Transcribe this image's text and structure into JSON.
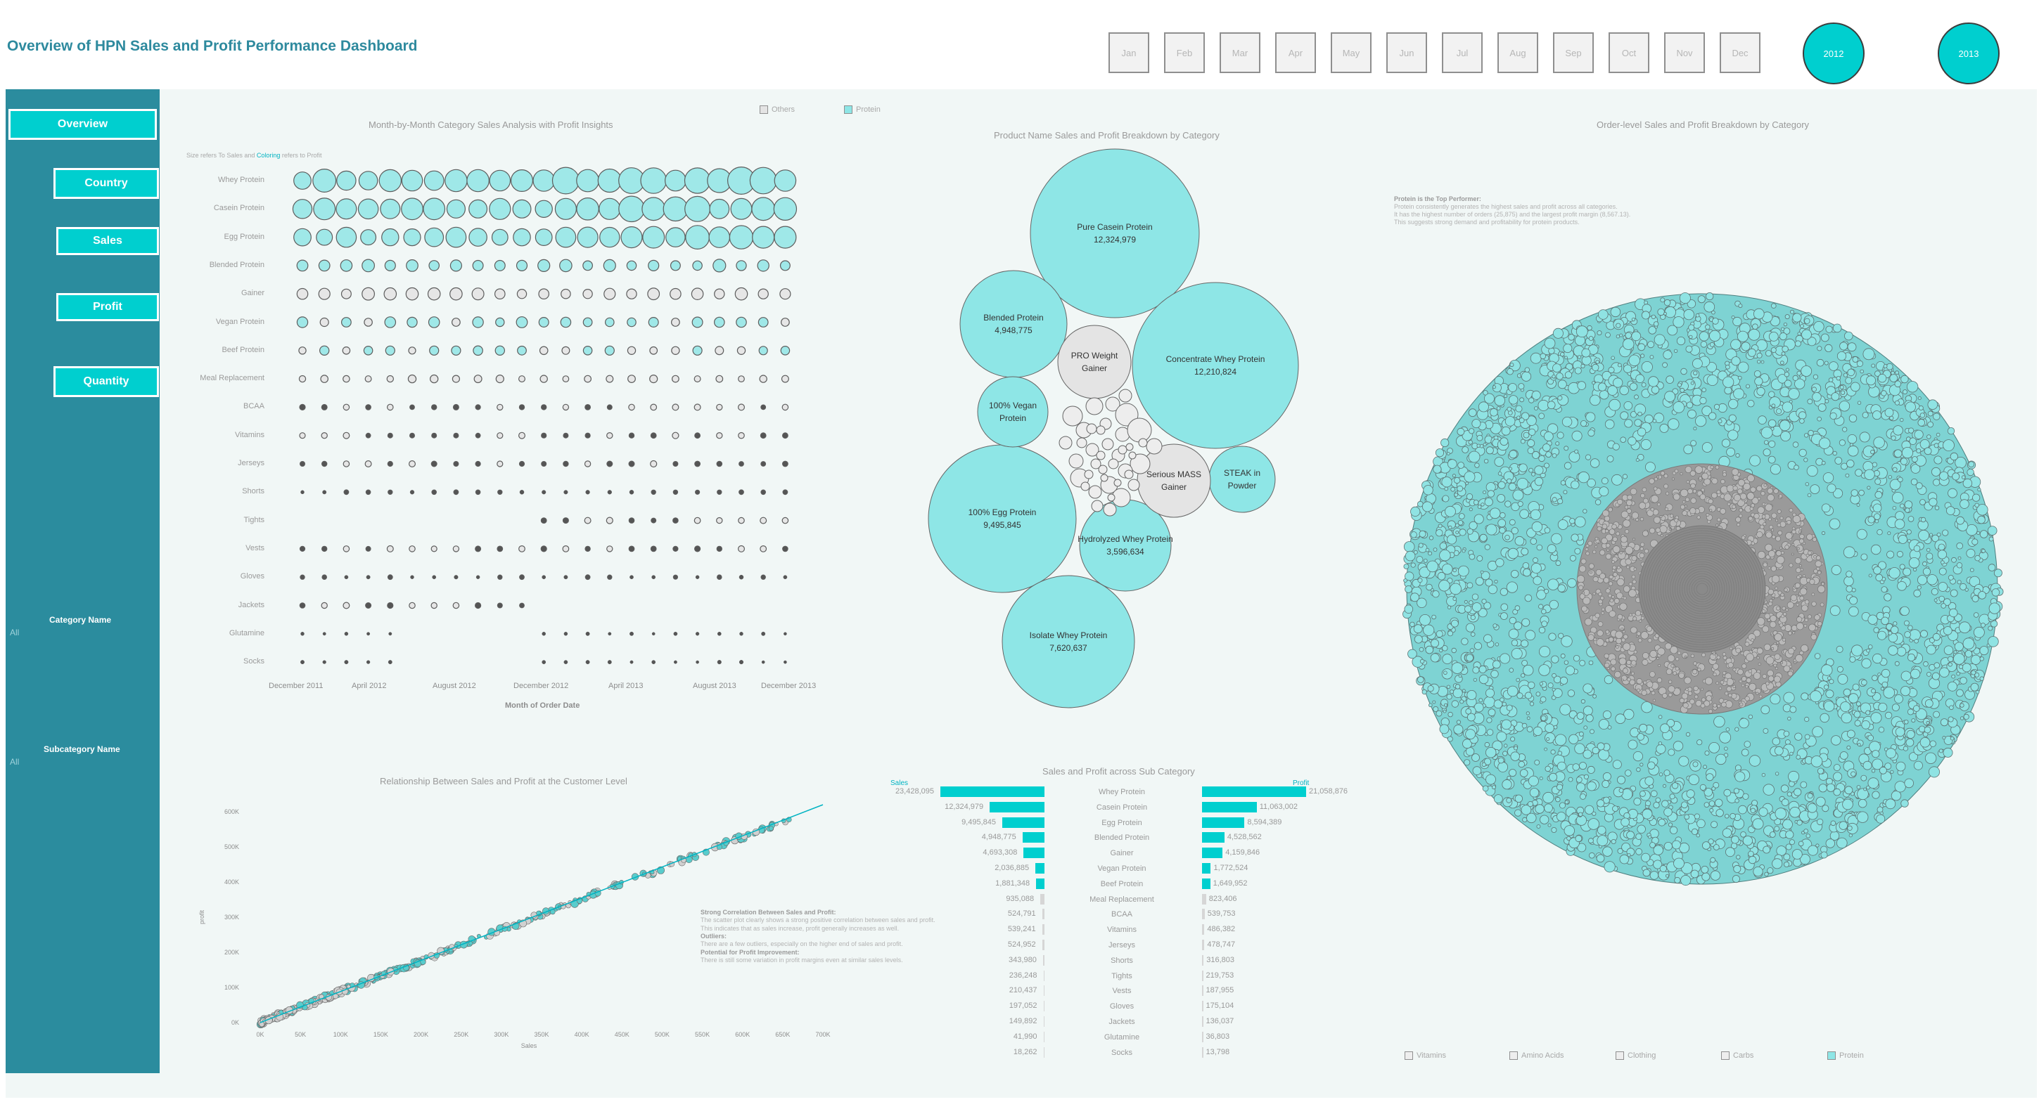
{
  "header": {
    "title": "Overview of HPN Sales and Profit Performance Dashboard",
    "months": [
      "Jan",
      "Feb",
      "Mar",
      "Apr",
      "May",
      "Jun",
      "Jul",
      "Aug",
      "Sep",
      "Oct",
      "Nov",
      "Dec"
    ],
    "years": [
      "2012",
      "2013"
    ]
  },
  "sidebar": {
    "nav": [
      "Overview",
      "Country",
      "Sales",
      "Profit",
      "Quantity"
    ],
    "filters": [
      {
        "label": "Category Name",
        "value": "All"
      },
      {
        "label": "Subcategory Name",
        "value": "All"
      }
    ]
  },
  "colors": {
    "accent": "#00cfcf",
    "sidebar": "#2b8c9e",
    "protein": "#8ee6e6",
    "others": "#e4e4e4",
    "title": "#2e8a9e"
  },
  "top_legend": {
    "others": "Others",
    "protein": "Protein"
  },
  "matrix": {
    "title": "Month-by-Month Category Sales Analysis with Profit Insights",
    "note_prefix": "Size refers  To Sales and ",
    "note_accent": "Coloring",
    "note_suffix": " refers to Profit",
    "x_title": "Month of Order Date",
    "x_ticks": [
      "December 2011",
      "April 2012",
      "August 2012",
      "December 2012",
      "April 2013",
      "August 2013",
      "December 2013"
    ],
    "categories": [
      "Whey Protein",
      "Casein Protein",
      "Egg Protein",
      "Blended Protein",
      "Gainer",
      "Vegan Protein",
      "Beef Protein",
      "Meal Replacement",
      "BCAA",
      "Vitamins",
      "Jerseys",
      "Shorts",
      "Tights",
      "Vests",
      "Gloves",
      "Jackets",
      "Glutamine",
      "Socks"
    ]
  },
  "packed": {
    "title": "Product Name Sales and Profit Breakdown by Category",
    "items": [
      {
        "name": "Pure Casein Protein",
        "value": "12,324,979"
      },
      {
        "name": "Concentrate Whey Protein",
        "value": "12,210,824"
      },
      {
        "name": "100% Egg Protein",
        "value": "9,495,845"
      },
      {
        "name": "Isolate Whey Protein",
        "value": "7,620,637"
      },
      {
        "name": "Blended Protein",
        "value": "4,948,775"
      },
      {
        "name": "Hydrolyzed Whey Protein",
        "value": "3,596,634"
      },
      {
        "name": "100% Vegan Protein",
        "value": ""
      },
      {
        "name": "STEAK in Powder",
        "value": ""
      },
      {
        "name": "PRO Weight Gainer",
        "value": ""
      },
      {
        "name": "Serious MASS Gainer",
        "value": ""
      }
    ]
  },
  "order_level": {
    "title": "Order-level Sales and Profit Breakdown by Category",
    "note": [
      "Protein is the Top Performer:",
      "Protein consistently generates the highest sales and profit across all categories.",
      "It has the highest number of orders (25,875) and the largest profit margin (8,567.13).",
      "This suggests strong demand and profitability for protein products."
    ],
    "legend": [
      "Vitamins",
      "Amino Acids",
      "Clothing",
      "Carbs",
      "Protein"
    ]
  },
  "scatter": {
    "title": "Relationship Between Sales and Profit at the Customer Level",
    "x_label": "Sales",
    "y_label": "profit",
    "x_ticks": [
      "0K",
      "50K",
      "100K",
      "150K",
      "200K",
      "250K",
      "300K",
      "350K",
      "400K",
      "450K",
      "500K",
      "550K",
      "600K",
      "650K",
      "700K"
    ],
    "y_ticks": [
      "0K",
      "100K",
      "200K",
      "300K",
      "400K",
      "500K",
      "600K"
    ],
    "note": [
      {
        "text": "Strong Correlation Between Sales and Profit:",
        "head": true
      },
      {
        "text": "The scatter plot clearly shows a strong positive correlation between sales and profit.",
        "head": false
      },
      {
        "text": "This indicates that as sales increase, profit generally increases as well.",
        "head": false
      },
      {
        "text": "Outliers:",
        "head": true
      },
      {
        "text": "There are a few outliers, especially on the higher end of sales and profit.",
        "head": false
      },
      {
        "text": "Potential for Profit Improvement:",
        "head": true
      },
      {
        "text": "There is still some variation in profit margins even at similar sales levels.",
        "head": false
      }
    ]
  },
  "chart_data": [
    {
      "type": "bar",
      "title": "Sales and Profit across Sub Category",
      "categories": [
        "Whey Protein",
        "Casein Protein",
        "Egg Protein",
        "Blended Protein",
        "Gainer",
        "Vegan Protein",
        "Beef Protein",
        "Meal Replacement",
        "BCAA",
        "Vitamins",
        "Jerseys",
        "Shorts",
        "Tights",
        "Vests",
        "Gloves",
        "Jackets",
        "Glutamine",
        "Socks"
      ],
      "series": [
        {
          "name": "Sales",
          "values": [
            23428095,
            12324979,
            9495845,
            4948775,
            4693308,
            2036885,
            1881348,
            935088,
            524791,
            539241,
            524952,
            343980,
            236248,
            210437,
            197052,
            149892,
            41990,
            18262
          ],
          "labels": [
            "23,428,095",
            "12,324,979",
            "9,495,845",
            "4,948,775",
            "4,693,308",
            "2,036,885",
            "1,881,348",
            "935,088",
            "524,791",
            "539,241",
            "524,952",
            "343,980",
            "236,248",
            "210,437",
            "197,052",
            "149,892",
            "41,990",
            "18,262"
          ]
        },
        {
          "name": "Profit",
          "values": [
            21058876,
            11063002,
            8594389,
            4528562,
            4159846,
            1772524,
            1649952,
            823406,
            539753,
            486382,
            478747,
            316803,
            219753,
            187955,
            175104,
            136037,
            36803,
            13798
          ],
          "labels": [
            "21,058,876",
            "11,063,002",
            "8,594,389",
            "4,528,562",
            "4,159,846",
            "1,772,524",
            "1,649,952",
            "823,406",
            "539,753",
            "486,382",
            "478,747",
            "316,803",
            "219,753",
            "187,955",
            "175,104",
            "136,037",
            "36,803",
            "13,798"
          ]
        }
      ],
      "protein_count": 7
    },
    {
      "type": "scatter",
      "title": "Relationship Between Sales and Profit at the Customer Level",
      "xlabel": "Sales",
      "ylabel": "profit",
      "xlim": [
        0,
        700000
      ],
      "ylim": [
        0,
        600000
      ],
      "trend": [
        [
          0,
          0
        ],
        [
          700000,
          620000
        ]
      ]
    }
  ]
}
